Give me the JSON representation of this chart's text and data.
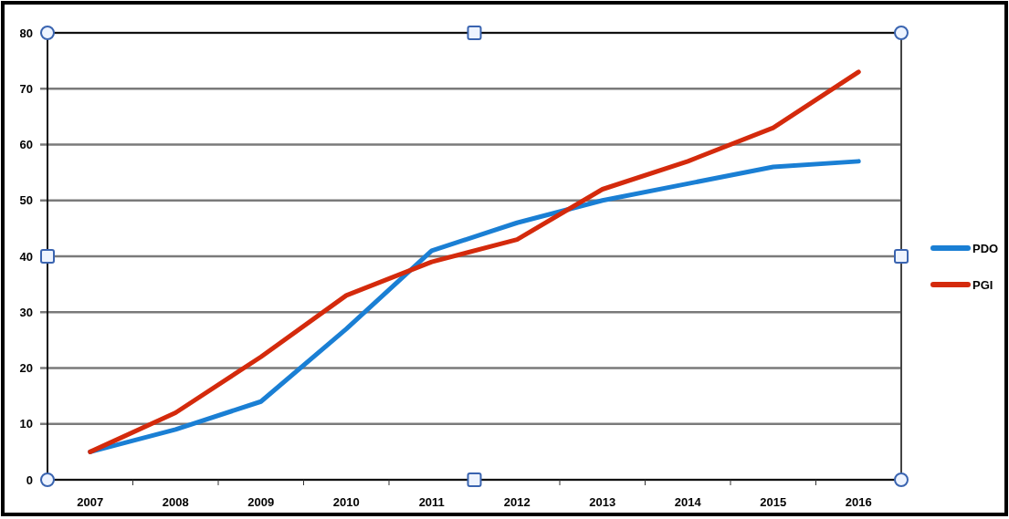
{
  "chart_data": {
    "type": "line",
    "categories": [
      "2007",
      "2008",
      "2009",
      "2010",
      "2011",
      "2012",
      "2013",
      "2014",
      "2015",
      "2016"
    ],
    "series": [
      {
        "name": "PDO",
        "color": "#1a7fd4",
        "values": [
          5,
          9,
          14,
          27,
          41,
          46,
          50,
          53,
          56,
          57
        ]
      },
      {
        "name": "PGI",
        "color": "#d42a0c",
        "values": [
          5,
          12,
          22,
          33,
          39,
          43,
          52,
          57,
          63,
          73
        ]
      }
    ],
    "ylim": [
      0,
      80
    ],
    "yticks": [
      0,
      10,
      20,
      30,
      40,
      50,
      60,
      70,
      80
    ],
    "grid": "y",
    "legend": "right",
    "marker": "none",
    "line_style": "solid"
  }
}
